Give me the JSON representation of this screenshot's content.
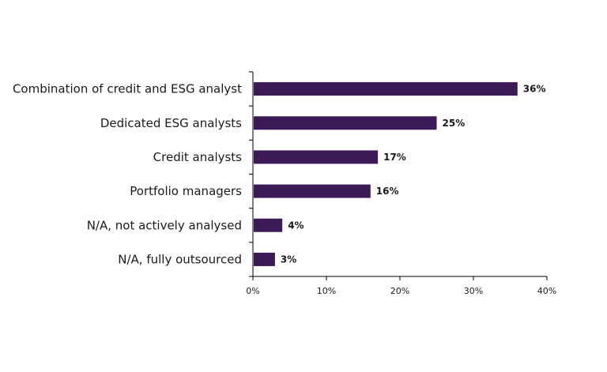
{
  "chart_data": {
    "type": "bar",
    "orientation": "horizontal",
    "categories": [
      "Combination of credit and ESG analyst",
      "Dedicated ESG analysts",
      "Credit analysts",
      "Portfolio managers",
      "N/A, not actively analysed",
      "N/A, fully outsourced"
    ],
    "values": [
      36,
      25,
      17,
      16,
      4,
      3
    ],
    "value_labels": [
      "36%",
      "25%",
      "17%",
      "16%",
      "4%",
      "3%"
    ],
    "xlim": [
      0,
      40
    ],
    "x_ticks": [
      0,
      10,
      20,
      30,
      40
    ],
    "x_tick_labels": [
      "0%",
      "10%",
      "20%",
      "30%",
      "40%"
    ],
    "grid": false,
    "legend": "none",
    "bar_color": "#3b1a57"
  }
}
